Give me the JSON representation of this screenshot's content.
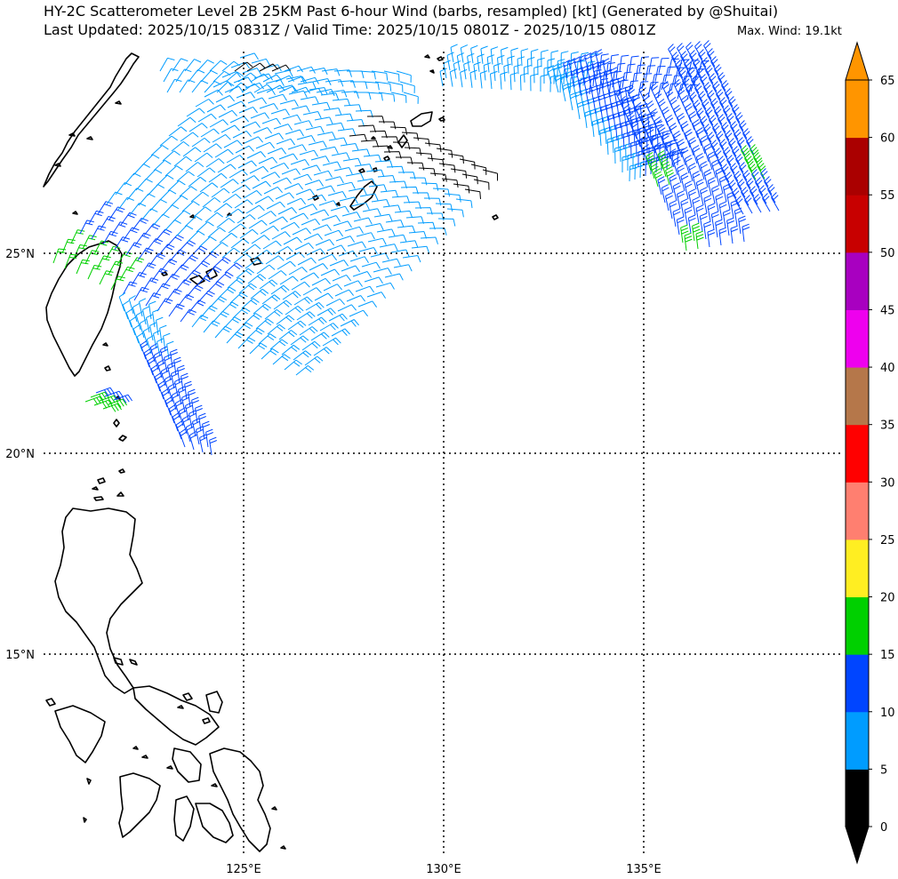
{
  "header": {
    "title_line1": "HY-2C Scatterometer Level 2B 25KM Past 6-hour Wind (barbs, resampled) [kt] (Generated by @Shuitai)",
    "title_line2": "Last Updated: 2025/10/15 0831Z / Valid Time: 2025/10/15 0801Z - 2025/10/15 0801Z",
    "max_wind": "Max. Wind: 19.1kt"
  },
  "map": {
    "lon_range": [
      120,
      140
    ],
    "lat_range": [
      10,
      30
    ],
    "lon_labels": [
      "125°E",
      "130°E",
      "135°E"
    ],
    "lat_labels": [
      "25°N",
      "20°N",
      "15°N"
    ],
    "gridline_style": "dotted black"
  },
  "colorbar": {
    "unit": "kt",
    "tick_labels": [
      "0",
      "5",
      "10",
      "15",
      "20",
      "25",
      "30",
      "35",
      "40",
      "45",
      "50",
      "55",
      "60",
      "65"
    ],
    "colors": [
      "#000000",
      "#009cff",
      "#0045ff",
      "#00d000",
      "#ffee22",
      "#ff7f70",
      "#ff0000",
      "#b5774a",
      "#ee00ee",
      "#a800c0",
      "#c80000",
      "#aa0000",
      "#ff9500"
    ],
    "extend": "both"
  }
}
